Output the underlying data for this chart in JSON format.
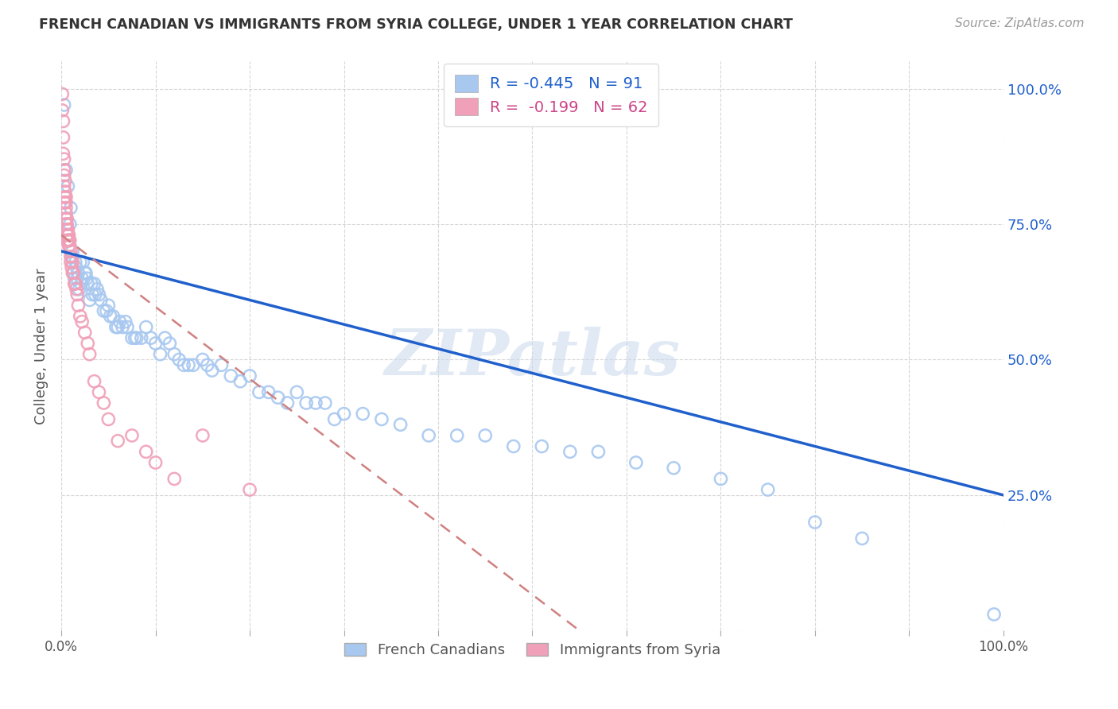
{
  "title": "FRENCH CANADIAN VS IMMIGRANTS FROM SYRIA COLLEGE, UNDER 1 YEAR CORRELATION CHART",
  "source": "Source: ZipAtlas.com",
  "ylabel": "College, Under 1 year",
  "ylabel_right_ticks": [
    "100.0%",
    "75.0%",
    "50.0%",
    "25.0%"
  ],
  "ylabel_right_vals": [
    1.0,
    0.75,
    0.5,
    0.25
  ],
  "legend_blue_r": "R = -0.445",
  "legend_blue_n": "N = 91",
  "legend_pink_r": "R =  -0.199",
  "legend_pink_n": "N = 62",
  "blue_color": "#a8c8f0",
  "pink_color": "#f0a0b8",
  "blue_line_color": "#2060cc",
  "pink_line_color": "#d08080",
  "background_color": "#ffffff",
  "watermark": "ZIPatlas",
  "blue_line_x0": 0.0,
  "blue_line_y0": 0.7,
  "blue_line_x1": 1.0,
  "blue_line_y1": 0.25,
  "pink_line_x0": 0.0,
  "pink_line_y0": 0.73,
  "pink_line_x1": 0.55,
  "pink_line_y1": 0.0,
  "xlim": [
    0.0,
    1.0
  ],
  "ylim": [
    0.0,
    1.05
  ],
  "blue_scatter_x": [
    0.003,
    0.005,
    0.007,
    0.008,
    0.009,
    0.01,
    0.011,
    0.012,
    0.013,
    0.014,
    0.015,
    0.016,
    0.017,
    0.018,
    0.019,
    0.02,
    0.021,
    0.022,
    0.023,
    0.025,
    0.026,
    0.027,
    0.028,
    0.03,
    0.032,
    0.033,
    0.035,
    0.036,
    0.038,
    0.04,
    0.042,
    0.045,
    0.048,
    0.05,
    0.052,
    0.055,
    0.058,
    0.06,
    0.062,
    0.065,
    0.068,
    0.07,
    0.075,
    0.078,
    0.08,
    0.085,
    0.09,
    0.095,
    0.1,
    0.105,
    0.11,
    0.115,
    0.12,
    0.125,
    0.13,
    0.135,
    0.14,
    0.15,
    0.155,
    0.16,
    0.17,
    0.18,
    0.19,
    0.2,
    0.21,
    0.22,
    0.23,
    0.24,
    0.25,
    0.26,
    0.27,
    0.28,
    0.3,
    0.32,
    0.34,
    0.36,
    0.39,
    0.42,
    0.45,
    0.48,
    0.51,
    0.54,
    0.57,
    0.61,
    0.65,
    0.7,
    0.75,
    0.8,
    0.85,
    0.99,
    0.29
  ],
  "blue_scatter_y": [
    0.97,
    0.85,
    0.82,
    0.72,
    0.75,
    0.78,
    0.69,
    0.7,
    0.66,
    0.65,
    0.68,
    0.67,
    0.65,
    0.66,
    0.63,
    0.68,
    0.64,
    0.65,
    0.68,
    0.66,
    0.66,
    0.65,
    0.64,
    0.61,
    0.64,
    0.62,
    0.64,
    0.62,
    0.63,
    0.62,
    0.61,
    0.59,
    0.59,
    0.6,
    0.58,
    0.58,
    0.56,
    0.56,
    0.57,
    0.56,
    0.57,
    0.56,
    0.54,
    0.54,
    0.54,
    0.54,
    0.56,
    0.54,
    0.53,
    0.51,
    0.54,
    0.53,
    0.51,
    0.5,
    0.49,
    0.49,
    0.49,
    0.5,
    0.49,
    0.48,
    0.49,
    0.47,
    0.46,
    0.47,
    0.44,
    0.44,
    0.43,
    0.42,
    0.44,
    0.42,
    0.42,
    0.42,
    0.4,
    0.4,
    0.39,
    0.38,
    0.36,
    0.36,
    0.36,
    0.34,
    0.34,
    0.33,
    0.33,
    0.31,
    0.3,
    0.28,
    0.26,
    0.2,
    0.17,
    0.03,
    0.39
  ],
  "pink_scatter_x": [
    0.001,
    0.001,
    0.002,
    0.002,
    0.002,
    0.003,
    0.003,
    0.003,
    0.003,
    0.004,
    0.004,
    0.004,
    0.004,
    0.005,
    0.005,
    0.005,
    0.005,
    0.005,
    0.005,
    0.006,
    0.006,
    0.006,
    0.006,
    0.006,
    0.007,
    0.007,
    0.007,
    0.008,
    0.008,
    0.008,
    0.009,
    0.009,
    0.01,
    0.01,
    0.01,
    0.011,
    0.012,
    0.012,
    0.013,
    0.014,
    0.015,
    0.016,
    0.017,
    0.018,
    0.02,
    0.022,
    0.025,
    0.028,
    0.03,
    0.035,
    0.04,
    0.045,
    0.05,
    0.06,
    0.075,
    0.09,
    0.1,
    0.12,
    0.15,
    0.2,
    0.003,
    0.004
  ],
  "pink_scatter_y": [
    0.99,
    0.96,
    0.94,
    0.91,
    0.88,
    0.87,
    0.85,
    0.84,
    0.82,
    0.83,
    0.81,
    0.8,
    0.79,
    0.8,
    0.79,
    0.78,
    0.77,
    0.76,
    0.75,
    0.76,
    0.75,
    0.74,
    0.73,
    0.72,
    0.74,
    0.73,
    0.72,
    0.73,
    0.72,
    0.71,
    0.72,
    0.71,
    0.7,
    0.69,
    0.68,
    0.67,
    0.66,
    0.68,
    0.66,
    0.64,
    0.64,
    0.63,
    0.62,
    0.6,
    0.58,
    0.57,
    0.55,
    0.53,
    0.51,
    0.46,
    0.44,
    0.42,
    0.39,
    0.35,
    0.36,
    0.33,
    0.31,
    0.28,
    0.36,
    0.26,
    0.79,
    0.8
  ]
}
